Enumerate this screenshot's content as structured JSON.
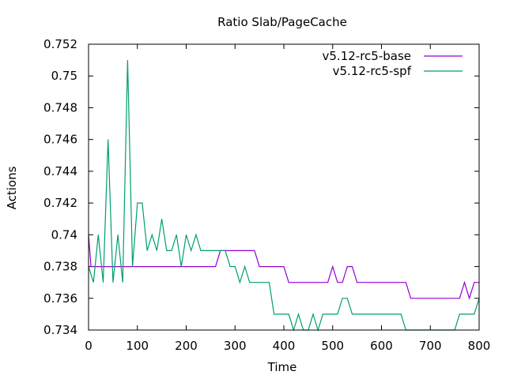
{
  "chart_data": {
    "type": "line",
    "title": "Ratio Slab/PageCache",
    "xlabel": "Time",
    "ylabel": "Actions",
    "xlim": [
      0,
      800
    ],
    "ylim": [
      0.734,
      0.752
    ],
    "grid": false,
    "legend_position": "top-right",
    "x_ticks": [
      0,
      100,
      200,
      300,
      400,
      500,
      600,
      700,
      800
    ],
    "x_tick_labels": [
      "0",
      "100",
      "200",
      "300",
      "400",
      "500",
      "600",
      "700",
      "800"
    ],
    "y_ticks": [
      0.734,
      0.736,
      0.738,
      0.74,
      0.742,
      0.744,
      0.746,
      0.748,
      0.75,
      0.752
    ],
    "y_tick_labels": [
      "0.734",
      "0.736",
      "0.738",
      "0.74",
      "0.742",
      "0.744",
      "0.746",
      "0.748",
      "0.75",
      "0.752"
    ],
    "series": [
      {
        "name": "v5.12-rc5-base",
        "color": "#9400d3",
        "x": [
          0,
          5,
          10,
          260,
          270,
          340,
          350,
          400,
          410,
          490,
          500,
          510,
          520,
          530,
          540,
          550,
          650,
          660,
          760,
          770,
          780,
          790,
          800
        ],
        "y": [
          0.74,
          0.738,
          0.738,
          0.738,
          0.739,
          0.739,
          0.738,
          0.738,
          0.737,
          0.737,
          0.738,
          0.737,
          0.737,
          0.738,
          0.738,
          0.737,
          0.737,
          0.736,
          0.736,
          0.737,
          0.736,
          0.737,
          0.737
        ]
      },
      {
        "name": "v5.12-rc5-spf",
        "color": "#009e73",
        "x": [
          0,
          10,
          20,
          30,
          40,
          50,
          60,
          70,
          80,
          90,
          100,
          110,
          120,
          130,
          140,
          150,
          160,
          170,
          180,
          190,
          200,
          210,
          220,
          230,
          240,
          250,
          260,
          270,
          280,
          290,
          300,
          310,
          320,
          330,
          340,
          350,
          360,
          370,
          380,
          390,
          400,
          410,
          420,
          430,
          440,
          450,
          460,
          470,
          480,
          490,
          500,
          510,
          520,
          530,
          540,
          550,
          560,
          570,
          580,
          590,
          600,
          610,
          620,
          630,
          640,
          650,
          660,
          670,
          680,
          690,
          700,
          710,
          720,
          730,
          740,
          750,
          760,
          770,
          780,
          790,
          800
        ],
        "y": [
          0.738,
          0.737,
          0.74,
          0.737,
          0.746,
          0.737,
          0.74,
          0.737,
          0.751,
          0.738,
          0.742,
          0.742,
          0.739,
          0.74,
          0.739,
          0.741,
          0.739,
          0.739,
          0.74,
          0.738,
          0.74,
          0.739,
          0.74,
          0.739,
          0.739,
          0.739,
          0.739,
          0.739,
          0.739,
          0.738,
          0.738,
          0.737,
          0.738,
          0.737,
          0.737,
          0.737,
          0.737,
          0.737,
          0.735,
          0.735,
          0.735,
          0.735,
          0.734,
          0.735,
          0.734,
          0.734,
          0.735,
          0.734,
          0.735,
          0.735,
          0.735,
          0.735,
          0.736,
          0.736,
          0.735,
          0.735,
          0.735,
          0.735,
          0.735,
          0.735,
          0.735,
          0.735,
          0.735,
          0.735,
          0.735,
          0.734,
          0.734,
          0.734,
          0.734,
          0.734,
          0.734,
          0.734,
          0.734,
          0.734,
          0.734,
          0.734,
          0.735,
          0.735,
          0.735,
          0.735,
          0.736
        ]
      }
    ]
  }
}
